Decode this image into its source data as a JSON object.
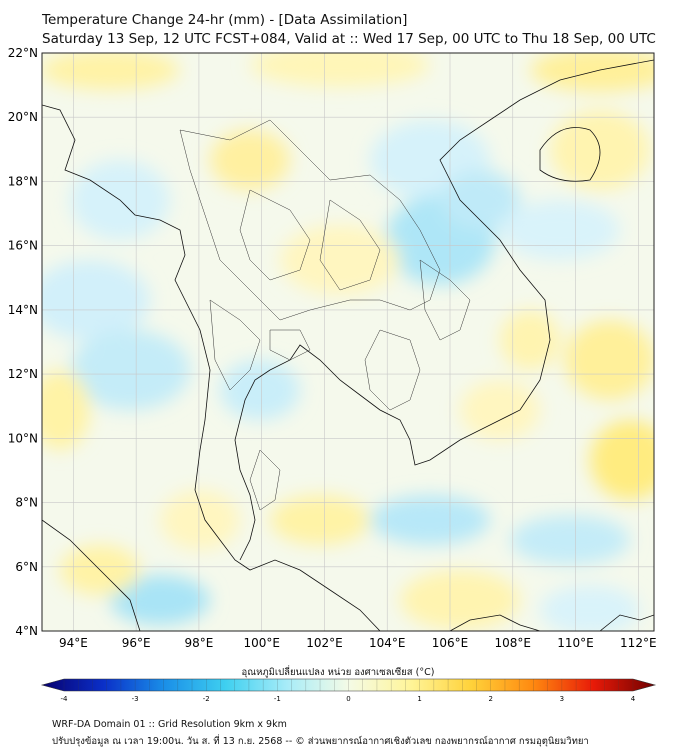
{
  "header": {
    "title": "Temperature Change 24-hr (mm) - [Data Assimilation]",
    "subtitle": "Saturday 13 Sep, 12 UTC FCST+084, Valid at :: Wed 17 Sep, 00 UTC to Thu 18 Sep, 00 UTC"
  },
  "map": {
    "lat_ticks": [
      "22°N",
      "20°N",
      "18°N",
      "16°N",
      "14°N",
      "12°N",
      "10°N",
      "8°N",
      "6°N",
      "4°N"
    ],
    "lon_ticks": [
      "94°E",
      "96°E",
      "98°E",
      "100°E",
      "102°E",
      "104°E",
      "106°E",
      "108°E",
      "110°E",
      "112°E"
    ],
    "lat_range": [
      4,
      22
    ],
    "lon_range": [
      93,
      112.5
    ],
    "grid": true,
    "field_colors": {
      "cool": "#bfe9f8",
      "neutral": "#f5f9ec",
      "warm": "#fff3a6"
    }
  },
  "colorbar": {
    "label": "อุณหภูมิเปลี่ยนแปลง หน่วย องศาเซลเซียส (°C)",
    "ticks": [
      "-4",
      "-3",
      "-2",
      "-1",
      "0",
      "1",
      "2",
      "3",
      "4"
    ],
    "range": [
      -4,
      4
    ],
    "colors": [
      "#08006e",
      "#0a2fc8",
      "#1a8fe8",
      "#3fd0f0",
      "#a8ecf8",
      "#f4fbe6",
      "#fff59a",
      "#ffd23a",
      "#ff8a10",
      "#e81a08",
      "#6e0000"
    ]
  },
  "footer": {
    "line1": "WRF-DA Domain 01 :: Grid Resolution 9km x 9km",
    "line2": "ปรับปรุงข้อมูล ณ เวลา 19:00น. วัน ส. ที่ 13 ก.ย. 2568 -- © ส่วนพยากรณ์อากาศเชิงตัวเลข กองพยากรณ์อากาศ กรมอุตุนิยมวิทยา"
  }
}
